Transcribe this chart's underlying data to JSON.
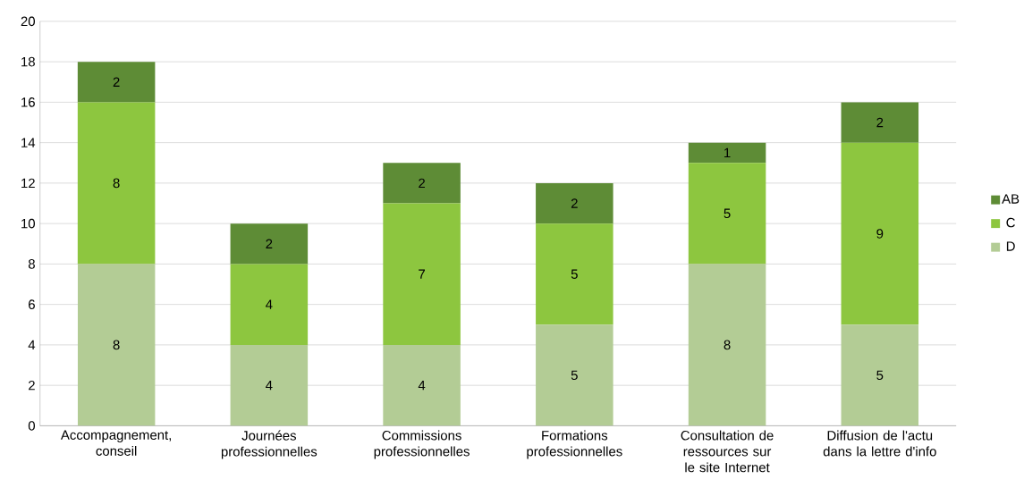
{
  "chart_data": {
    "type": "bar",
    "stacked": true,
    "categories": [
      "Accompagnement, conseil",
      "Journées professionnelles",
      "Commissions professionnelles",
      "Formations professionnelles",
      "Consultation de ressources sur le site Internet",
      "Diffusion de l'actu dans la lettre d'info"
    ],
    "series": [
      {
        "name": "D",
        "color": "#b3cc95",
        "values": [
          8,
          4,
          4,
          5,
          8,
          5
        ]
      },
      {
        "name": "C",
        "color": "#8dc63f",
        "values": [
          8,
          4,
          7,
          5,
          5,
          9
        ]
      },
      {
        "name": "AB",
        "color": "#5e8c36",
        "values": [
          2,
          2,
          2,
          2,
          1,
          2
        ]
      }
    ],
    "ylim": [
      0,
      20
    ],
    "yticks": [
      0,
      2,
      4,
      6,
      8,
      10,
      12,
      14,
      16,
      18,
      20
    ],
    "grid": "y",
    "legend": "right",
    "data_labels": true
  }
}
